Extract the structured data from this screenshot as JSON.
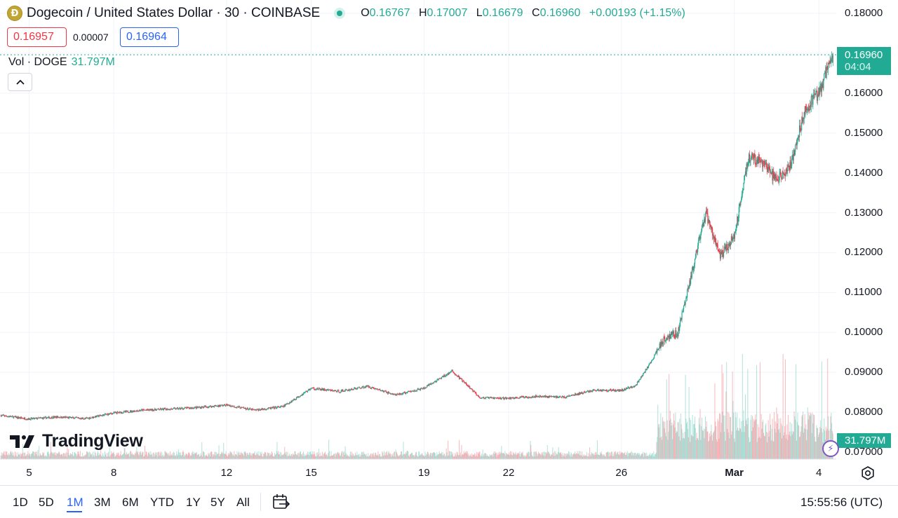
{
  "header": {
    "coin_icon": "dogecoin-logo-icon",
    "coin_glyph": "Ð",
    "title": "Dogecoin / United States Dollar · 30 · COINBASE",
    "ohlc": {
      "o_label": "O",
      "o_value": "0.16767",
      "h_label": "H",
      "h_value": "0.17007",
      "l_label": "L",
      "l_value": "0.16679",
      "c_label": "C",
      "c_value": "0.16960",
      "change": "+0.00193 (+1.15%)"
    },
    "sell_price": "0.16957",
    "spread": "0.00007",
    "buy_price": "0.16964"
  },
  "volume_legend": {
    "label": "Vol · DOGE",
    "value": "31.797M"
  },
  "collapse_icon": "chevron-up-icon",
  "logo": {
    "icon": "tradingview-logo-icon",
    "text": "TradingView"
  },
  "price_axis": {
    "labels": [
      "0.18000",
      "0.16000",
      "0.15000",
      "0.14000",
      "0.13000",
      "0.12000",
      "0.11000",
      "0.10000",
      "0.09000",
      "0.08000",
      "0.07000"
    ],
    "current_price": "0.16960",
    "countdown": "04:04",
    "current_volume": "31.797M"
  },
  "time_axis": {
    "labels": [
      "5",
      "8",
      "12",
      "15",
      "19",
      "22",
      "26",
      "Mar",
      "4"
    ]
  },
  "bottom_bar": {
    "ranges": [
      "1D",
      "5D",
      "1M",
      "3M",
      "6M",
      "YTD",
      "1Y",
      "5Y",
      "All"
    ],
    "active_range": "1M",
    "calendar_icon": "calendar-goto-icon",
    "clock": "15:55:56 (UTC)"
  },
  "colors": {
    "up": "#22ab94",
    "down": "#f23645",
    "accent": "#2962ff",
    "grid": "#f0f3fa"
  },
  "chart_data": {
    "type": "candlestick",
    "title": "Dogecoin / United States Dollar · 30 · COINBASE",
    "interval": "30",
    "x_range": [
      "Feb 4",
      "Mar 4"
    ],
    "y_range": [
      0.07,
      0.18
    ],
    "scale": "linear",
    "grid": true,
    "price_path": {
      "x": [
        "Feb 4 00:00",
        "Feb 5 00:00",
        "Feb 6 00:00",
        "Feb 7 00:00",
        "Feb 8 00:00",
        "Feb 9 00:00",
        "Feb 10 00:00",
        "Feb 11 00:00",
        "Feb 12 00:00",
        "Feb 13 00:00",
        "Feb 14 00:00",
        "Feb 15 00:00",
        "Feb 16 00:00",
        "Feb 17 00:00",
        "Feb 18 00:00",
        "Feb 19 00:00",
        "Feb 20 00:00",
        "Feb 21 00:00",
        "Feb 22 00:00",
        "Feb 23 00:00",
        "Feb 24 00:00",
        "Feb 25 00:00",
        "Feb 26 00:00",
        "Feb 26 12:00",
        "Feb 27 00:00",
        "Feb 27 12:00",
        "Feb 28 00:00",
        "Feb 28 12:00",
        "Feb 29 00:00",
        "Feb 29 12:00",
        "Mar 1 00:00",
        "Mar 1 12:00",
        "Mar 2 00:00",
        "Mar 2 12:00",
        "Mar 3 00:00",
        "Mar 3 12:00",
        "Mar 4 00:00",
        "Mar 4 12:00"
      ],
      "y": [
        0.0792,
        0.0783,
        0.0788,
        0.0784,
        0.0798,
        0.0805,
        0.0808,
        0.0812,
        0.0818,
        0.0805,
        0.0814,
        0.086,
        0.0852,
        0.0865,
        0.0843,
        0.086,
        0.0903,
        0.0836,
        0.0835,
        0.084,
        0.0838,
        0.0855,
        0.0855,
        0.0867,
        0.092,
        0.0985,
        0.1,
        0.115,
        0.13,
        0.119,
        0.124,
        0.144,
        0.1425,
        0.138,
        0.142,
        0.156,
        0.16,
        0.1696
      ]
    },
    "volume_unit": "DOGE",
    "last_volume": "31.797M",
    "last": {
      "open": 0.16767,
      "high": 0.17007,
      "low": 0.16679,
      "close": 0.1696,
      "change": 0.00193,
      "change_pct": 1.15
    }
  }
}
